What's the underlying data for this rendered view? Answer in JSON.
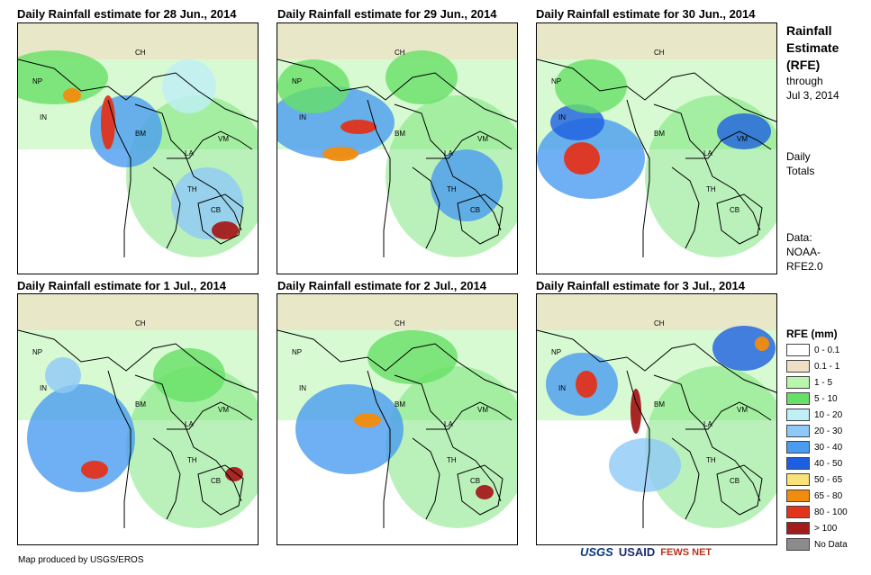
{
  "panels": [
    {
      "title": "Daily Rainfall estimate for 28 Jun., 2014"
    },
    {
      "title": "Daily Rainfall estimate for 29 Jun., 2014"
    },
    {
      "title": "Daily Rainfall estimate for 30 Jun., 2014"
    },
    {
      "title": "Daily Rainfall estimate for 1 Jul., 2014"
    },
    {
      "title": "Daily Rainfall estimate for 2 Jul., 2014"
    },
    {
      "title": "Daily Rainfall estimate for 3 Jul., 2014"
    }
  ],
  "country_labels": [
    "CH",
    "NP",
    "IN",
    "BM",
    "LA",
    "VM",
    "TH",
    "CB"
  ],
  "side": {
    "title_line1": "Rainfall",
    "title_line2": "Estimate",
    "title_line3": "(RFE)",
    "through": "through",
    "date": "Jul 3, 2014",
    "daily": "Daily",
    "totals": "Totals",
    "data_label": "Data:",
    "source1": "NOAA-",
    "source2": "RFE2.0"
  },
  "legend": {
    "title": "RFE (mm)",
    "items": [
      {
        "label": "0 - 0.1",
        "color": "#ffffff"
      },
      {
        "label": "0.1 - 1",
        "color": "#efdfc5"
      },
      {
        "label": "1 - 5",
        "color": "#b8f5ad"
      },
      {
        "label": "5 - 10",
        "color": "#66e066"
      },
      {
        "label": "10 - 20",
        "color": "#bfeff7"
      },
      {
        "label": "20 - 30",
        "color": "#8fc9f7"
      },
      {
        "label": "30 - 40",
        "color": "#4a9cf0"
      },
      {
        "label": "40 - 50",
        "color": "#1d5fe0"
      },
      {
        "label": "50 - 65",
        "color": "#f9e27a"
      },
      {
        "label": "65 - 80",
        "color": "#f28c0c"
      },
      {
        "label": "80 - 100",
        "color": "#e2331c"
      },
      {
        "label": "> 100",
        "color": "#a41b1b"
      },
      {
        "label": "No Data",
        "color": "#8c8c8c"
      }
    ]
  },
  "footer": {
    "text": "Map produced by USGS/EROS"
  },
  "logos": {
    "usgs": "USGS",
    "usaid": "USAID",
    "fews": "FEWS NET"
  }
}
